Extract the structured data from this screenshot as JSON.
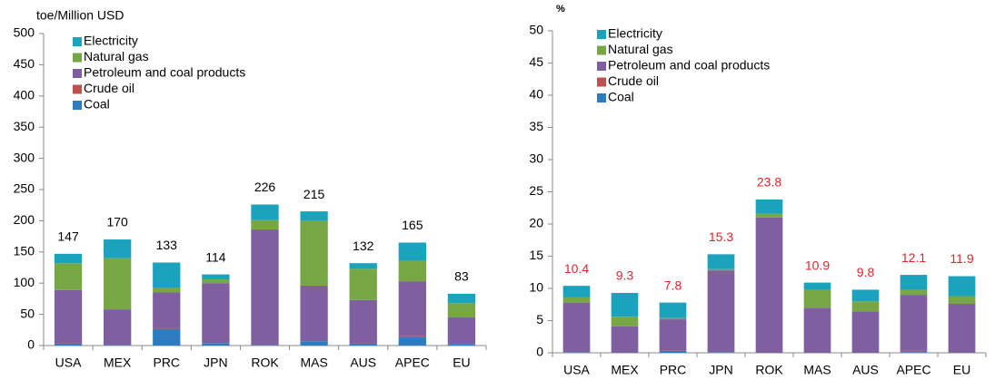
{
  "chart_data": [
    {
      "type": "bar",
      "stacked": true,
      "y_label": "toe/Million USD",
      "categories": [
        "USA",
        "MEX",
        "PRC",
        "JPN",
        "ROK",
        "MAS",
        "AUS",
        "APEC",
        "EU"
      ],
      "series": [
        {
          "name": "Coal",
          "color": "#2f7bbf",
          "values": [
            3,
            1,
            27,
            4,
            1,
            7,
            3,
            13,
            2
          ]
        },
        {
          "name": "Crude oil",
          "color": "#c0504d",
          "values": [
            0,
            0,
            2,
            0,
            0,
            0,
            0,
            2,
            0
          ]
        },
        {
          "name": "Petroleum and coal products",
          "color": "#7f5f9f",
          "values": [
            86,
            57,
            56,
            96,
            185,
            89,
            70,
            88,
            43
          ]
        },
        {
          "name": "Natural gas",
          "color": "#77a645",
          "values": [
            43,
            82,
            8,
            6,
            15,
            104,
            50,
            33,
            23
          ]
        },
        {
          "name": "Electricity",
          "color": "#1ba3be",
          "values": [
            15,
            30,
            40,
            8,
            25,
            15,
            9,
            29,
            15
          ]
        }
      ],
      "totals": [
        147,
        170,
        133,
        114,
        226,
        215,
        132,
        165,
        83
      ],
      "totals_color": "#000000",
      "ylim": [
        0,
        500
      ],
      "yticks": [
        0,
        50,
        100,
        150,
        200,
        250,
        300,
        350,
        400,
        450,
        500
      ]
    },
    {
      "type": "bar",
      "stacked": true,
      "y_label": "%",
      "categories": [
        "USA",
        "MEX",
        "PRC",
        "JPN",
        "ROK",
        "MAS",
        "AUS",
        "APEC",
        "EU"
      ],
      "series": [
        {
          "name": "Coal",
          "color": "#2f7bbf",
          "values": [
            0.1,
            0,
            0.3,
            0.1,
            0,
            0,
            0,
            0.1,
            0
          ]
        },
        {
          "name": "Crude oil",
          "color": "#c0504d",
          "values": [
            0,
            0,
            0,
            0,
            0,
            0,
            0,
            0.2,
            0
          ]
        },
        {
          "name": "Petroleum and coal products",
          "color": "#7f5f9f",
          "values": [
            7.7,
            4.1,
            4.9,
            12.7,
            21.0,
            7.0,
            6.4,
            8.7,
            7.6
          ]
        },
        {
          "name": "Natural gas",
          "color": "#77a645",
          "values": [
            0.8,
            1.5,
            0.2,
            0.2,
            0.6,
            2.8,
            1.6,
            0.8,
            1.2
          ]
        },
        {
          "name": "Electricity",
          "color": "#1ba3be",
          "values": [
            1.8,
            3.7,
            2.4,
            2.3,
            2.2,
            1.1,
            1.8,
            2.3,
            3.1
          ]
        }
      ],
      "totals": [
        10.4,
        9.3,
        7.8,
        15.3,
        23.8,
        10.9,
        9.8,
        12.1,
        11.9
      ],
      "totals_color": "#e0262b",
      "ylim": [
        0,
        50
      ],
      "yticks": [
        0,
        5,
        10,
        15,
        20,
        25,
        30,
        35,
        40,
        45,
        50
      ]
    }
  ]
}
